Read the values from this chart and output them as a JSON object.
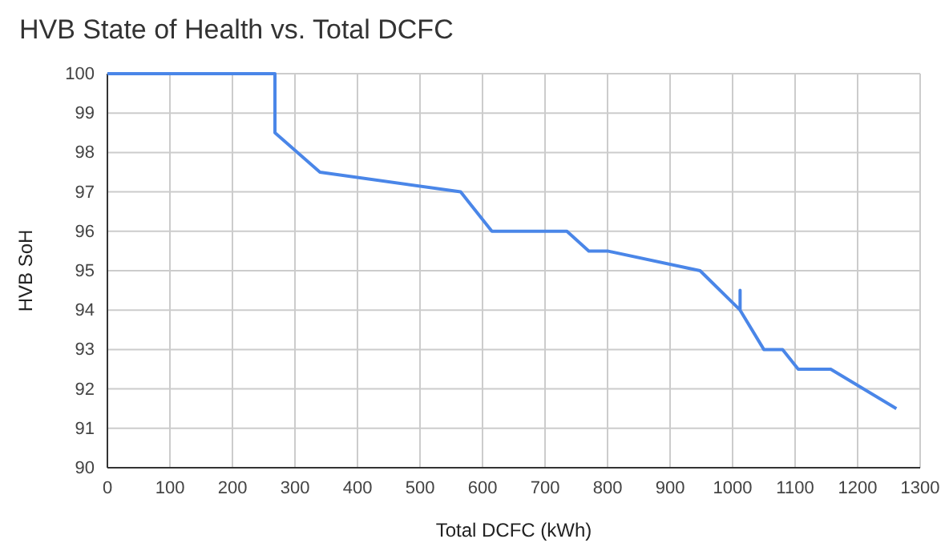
{
  "chart_data": {
    "type": "line",
    "title": "HVB State of Health vs. Total DCFC",
    "xlabel": "Total DCFC (kWh)",
    "ylabel": "HVB SoH",
    "x": [
      0,
      268,
      268,
      340,
      565,
      615,
      735,
      770,
      800,
      948,
      1012,
      1012,
      1012,
      1050,
      1080,
      1105,
      1157,
      1262
    ],
    "series": [
      {
        "color": "#4a86e8",
        "values": [
          100,
          100,
          98.5,
          97.5,
          97,
          96,
          96,
          95.5,
          95.5,
          95,
          94,
          94.5,
          94,
          93,
          93,
          92.5,
          92.5,
          91.5
        ]
      }
    ],
    "xlim": [
      0,
      1300
    ],
    "xticks": [
      0,
      100,
      200,
      300,
      400,
      500,
      600,
      700,
      800,
      900,
      1000,
      1100,
      1200,
      1300
    ],
    "ylim": [
      90,
      100
    ],
    "yticks": [
      90,
      91,
      92,
      93,
      94,
      95,
      96,
      97,
      98,
      99,
      100
    ],
    "grid": true,
    "marker": "none",
    "line_style": "solid"
  }
}
